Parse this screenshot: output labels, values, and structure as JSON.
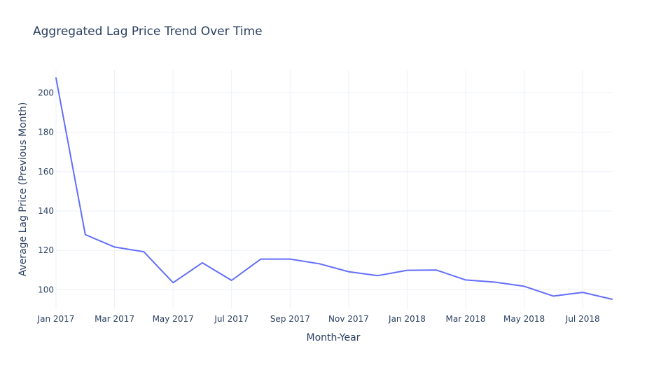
{
  "chart_data": {
    "type": "line",
    "title": "Aggregated Lag Price Trend Over Time",
    "xlabel": "Month-Year",
    "ylabel": "Average Lag Price (Previous Month)",
    "x": [
      "2017-01",
      "2017-02",
      "2017-03",
      "2017-04",
      "2017-05",
      "2017-06",
      "2017-07",
      "2017-08",
      "2017-09",
      "2017-10",
      "2017-11",
      "2017-12",
      "2018-01",
      "2018-02",
      "2018-03",
      "2018-04",
      "2018-05",
      "2018-06",
      "2018-07",
      "2018-08"
    ],
    "series": [
      {
        "values": [
          207.5,
          128.0,
          121.7,
          119.3,
          103.6,
          113.7,
          104.8,
          115.6,
          115.6,
          113.2,
          109.2,
          107.2,
          109.9,
          110.0,
          105.0,
          103.9,
          101.8,
          96.8,
          98.7,
          95.2
        ]
      }
    ],
    "xticks": [
      "Jan 2017",
      "Mar 2017",
      "May 2017",
      "Jul 2017",
      "Sep 2017",
      "Nov 2017",
      "Jan 2018",
      "Mar 2018",
      "May 2018",
      "Jul 2018"
    ],
    "yticks": [
      100,
      120,
      140,
      160,
      180,
      200
    ],
    "ylim": [
      90.2,
      211.5
    ],
    "grid": true,
    "legend": "none",
    "colors": {
      "line": "#636efa",
      "grid": "#ebf0f8",
      "text": "#2a3f5f",
      "background": "#ffffff"
    }
  }
}
